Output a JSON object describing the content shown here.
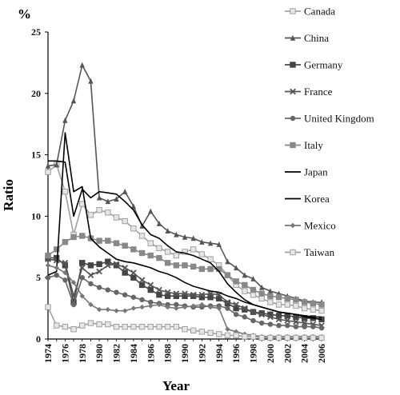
{
  "chart_data": {
    "type": "line",
    "unit_label": "%",
    "xlabel": "Year",
    "ylabel": "Ratio",
    "ylim": [
      0,
      25
    ],
    "y_ticks": [
      0,
      5,
      10,
      15,
      20,
      25
    ],
    "x_ticks": [
      "1974",
      "1976",
      "1978",
      "1980",
      "1982",
      "1984",
      "1986",
      "1988",
      "1990",
      "1992",
      "1994",
      "1996",
      "1998",
      "2000",
      "2002",
      "2004",
      "2006"
    ],
    "x": [
      1974,
      1975,
      1976,
      1977,
      1978,
      1979,
      1980,
      1981,
      1982,
      1983,
      1984,
      1985,
      1986,
      1987,
      1988,
      1989,
      1990,
      1991,
      1992,
      1993,
      1994,
      1995,
      1996,
      1997,
      1998,
      1999,
      2000,
      2001,
      2002,
      2003,
      2004,
      2005,
      2006
    ],
    "legend_position": "right",
    "series": [
      {
        "name": "Canada",
        "color": "#a0a0a0",
        "marker": "square-open",
        "values": [
          13.6,
          14.2,
          12.0,
          8.5,
          11.0,
          10.1,
          10.5,
          10.3,
          9.9,
          9.6,
          9.0,
          8.4,
          7.8,
          7.4,
          7.1,
          6.8,
          7.1,
          7.3,
          6.9,
          6.5,
          6.0,
          5.2,
          4.4,
          3.9,
          3.6,
          3.3,
          3.0,
          2.8,
          2.8,
          2.7,
          2.5,
          2.4,
          2.3
        ]
      },
      {
        "name": "China",
        "color": "#555555",
        "marker": "triangle",
        "values": [
          14.1,
          14.2,
          17.8,
          19.4,
          22.3,
          21.0,
          11.5,
          11.2,
          11.4,
          12.0,
          10.8,
          9.2,
          10.4,
          9.4,
          8.8,
          8.5,
          8.3,
          8.2,
          7.9,
          7.8,
          7.7,
          6.3,
          5.8,
          5.2,
          4.9,
          4.2,
          3.9,
          3.7,
          3.5,
          3.3,
          3.1,
          3.0,
          3.0
        ]
      },
      {
        "name": "Germany",
        "color": "#444444",
        "marker": "square-x",
        "values": [
          6.6,
          6.6,
          6.0,
          3.0,
          6.2,
          6.0,
          6.1,
          6.3,
          6.0,
          5.4,
          5.0,
          4.4,
          4.0,
          3.6,
          3.5,
          3.5,
          3.5,
          3.5,
          3.4,
          3.4,
          3.3,
          2.9,
          2.5,
          2.4,
          2.2,
          2.1,
          2.0,
          1.9,
          1.9,
          1.8,
          1.7,
          1.7,
          1.6
        ]
      },
      {
        "name": "France",
        "color": "#555555",
        "marker": "x",
        "values": [
          6.5,
          6.4,
          6.2,
          3.5,
          5.8,
          5.2,
          5.5,
          6.0,
          6.1,
          5.8,
          5.4,
          4.8,
          4.4,
          4.0,
          3.8,
          3.7,
          3.7,
          3.6,
          3.6,
          3.7,
          3.6,
          3.0,
          2.8,
          2.5,
          2.2,
          2.0,
          1.8,
          1.6,
          1.5,
          1.4,
          1.3,
          1.2,
          1.1
        ]
      },
      {
        "name": "United Kingdom",
        "color": "#666666",
        "marker": "circle",
        "values": [
          5.0,
          5.2,
          4.8,
          2.8,
          5.0,
          4.5,
          4.2,
          4.0,
          3.8,
          3.6,
          3.4,
          3.2,
          3.0,
          2.9,
          2.8,
          2.8,
          2.7,
          2.6,
          2.6,
          2.7,
          2.7,
          2.5,
          2.0,
          1.8,
          1.5,
          1.3,
          1.2,
          1.1,
          1.1,
          1.0,
          1.0,
          1.0,
          0.9
        ]
      },
      {
        "name": "Italy",
        "color": "#888888",
        "marker": "square-hash",
        "values": [
          6.8,
          7.3,
          7.9,
          8.3,
          8.4,
          8.2,
          8.0,
          8.0,
          7.8,
          7.6,
          7.3,
          7.0,
          6.8,
          6.6,
          6.2,
          6.0,
          6.0,
          5.9,
          5.7,
          5.7,
          5.7,
          5.2,
          4.7,
          4.4,
          4.0,
          3.7,
          3.5,
          3.4,
          3.3,
          3.2,
          3.0,
          2.9,
          2.8
        ]
      },
      {
        "name": "Japan",
        "color": "#000000",
        "marker": "none",
        "values": [
          14.5,
          14.5,
          14.4,
          10.0,
          12.2,
          11.5,
          12.0,
          11.9,
          11.8,
          11.2,
          10.5,
          9.3,
          8.5,
          8.2,
          7.6,
          7.1,
          7.0,
          6.8,
          6.5,
          6.2,
          5.5,
          4.5,
          3.8,
          3.2,
          2.8,
          2.6,
          2.4,
          2.2,
          2.1,
          2.0,
          1.8,
          1.7,
          1.6
        ]
      },
      {
        "name": "Korea",
        "color": "#000000",
        "marker": "none",
        "values": [
          5.2,
          5.5,
          16.8,
          12.0,
          12.4,
          8.2,
          7.5,
          7.0,
          6.5,
          6.3,
          6.2,
          6.0,
          5.8,
          5.5,
          5.3,
          5.0,
          4.6,
          4.3,
          4.1,
          3.9,
          3.8,
          3.5,
          3.3,
          3.0,
          2.8,
          2.6,
          2.4,
          2.2,
          2.1,
          2.0,
          1.9,
          1.8,
          1.8
        ]
      },
      {
        "name": "Mexico",
        "color": "#777777",
        "marker": "diamond",
        "values": [
          6.0,
          5.8,
          5.4,
          4.6,
          3.5,
          2.8,
          2.4,
          2.4,
          2.3,
          2.3,
          2.5,
          2.6,
          2.7,
          2.8,
          2.6,
          2.5,
          2.6,
          2.7,
          2.8,
          2.6,
          2.5,
          0.8,
          0.6,
          0.4,
          0.3,
          0.2,
          0.2,
          0.2,
          0.2,
          0.2,
          0.2,
          0.2,
          0.2
        ]
      },
      {
        "name": "Taiwan",
        "color": "#a0a0a0",
        "marker": "square-open",
        "values": [
          2.6,
          1.1,
          1.0,
          0.8,
          1.1,
          1.3,
          1.2,
          1.2,
          1.0,
          1.0,
          1.0,
          1.0,
          1.0,
          1.0,
          1.0,
          1.0,
          0.8,
          0.7,
          0.6,
          0.5,
          0.4,
          0.3,
          0.3,
          0.2,
          0.2,
          0.1,
          0.1,
          0.1,
          0.1,
          0.1,
          0.1,
          0.1,
          0.1
        ]
      }
    ]
  }
}
